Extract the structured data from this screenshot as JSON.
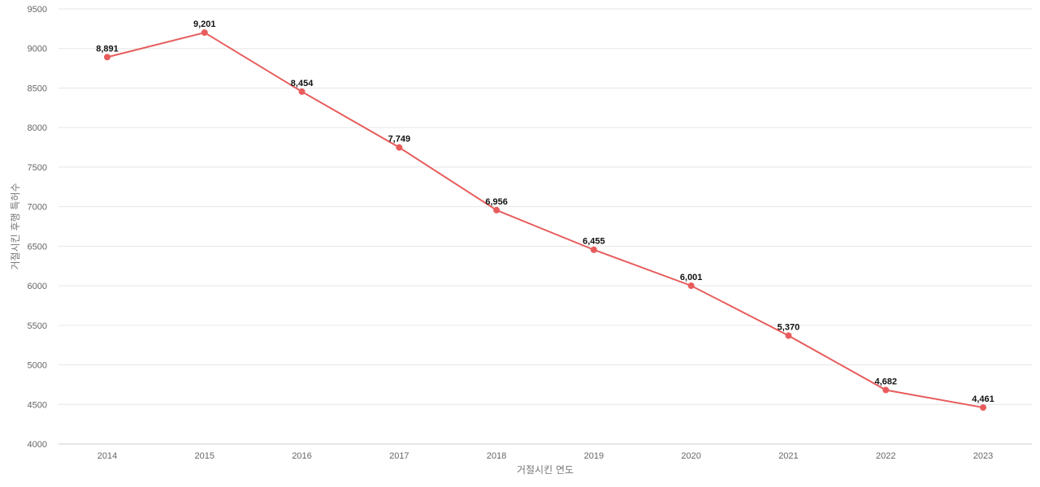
{
  "chart_data": {
    "type": "line",
    "xlabel": "거절시킨 연도",
    "ylabel": "거절시킨 후행 특허수",
    "ylim": [
      4000,
      9500
    ],
    "yticks": [
      4000,
      4500,
      5000,
      5500,
      6000,
      6500,
      7000,
      7500,
      8000,
      8500,
      9000,
      9500
    ],
    "categories": [
      "2014",
      "2015",
      "2016",
      "2017",
      "2018",
      "2019",
      "2020",
      "2021",
      "2022",
      "2023"
    ],
    "series": [
      {
        "values": [
          8891,
          9201,
          8454,
          7749,
          6956,
          6455,
          6001,
          5370,
          4682,
          4461
        ],
        "labels": [
          "8,891",
          "9,201",
          "8,454",
          "7,749",
          "6,956",
          "6,455",
          "6,001",
          "5,370",
          "4,682",
          "4,461"
        ]
      }
    ],
    "grid": true,
    "legend": "none",
    "line_color": "#e85c5c"
  }
}
